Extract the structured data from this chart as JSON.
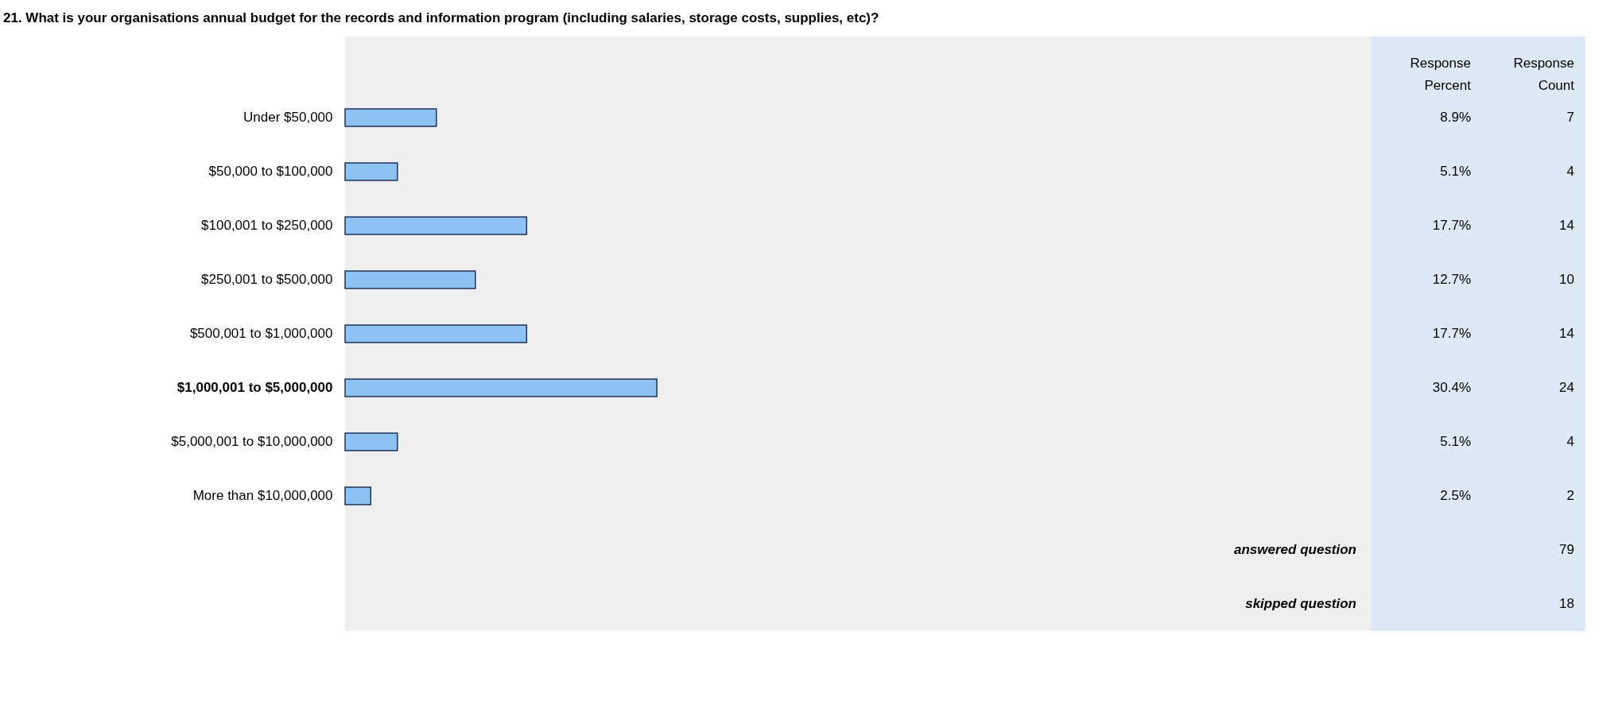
{
  "chart_data": {
    "type": "bar",
    "orientation": "horizontal",
    "title": "21. What is your organisations annual budget for the records and information program (including salaries, storage costs, supplies, etc)?",
    "categories": [
      "Under $50,000",
      "$50,000 to $100,000",
      "$100,001 to $250,000",
      "$250,001 to $500,000",
      "$500,001 to $1,000,000",
      "$1,000,001 to $5,000,000",
      "$5,000,001 to $10,000,000",
      "More than $10,000,000"
    ],
    "values": [
      8.9,
      5.1,
      17.7,
      12.7,
      17.7,
      30.4,
      5.1,
      2.5
    ],
    "value_labels": [
      "8.9%",
      "5.1%",
      "17.7%",
      "12.7%",
      "17.7%",
      "30.4%",
      "5.1%",
      "2.5%"
    ],
    "color": "#8ec2f4",
    "xlim": [
      0,
      100
    ],
    "annotations": [
      "Response Percent",
      "Response Count",
      "7",
      "4",
      "14",
      "10",
      "14",
      "24",
      "4",
      "2",
      "answered question",
      "79",
      "skipped question",
      "18"
    ]
  }
}
